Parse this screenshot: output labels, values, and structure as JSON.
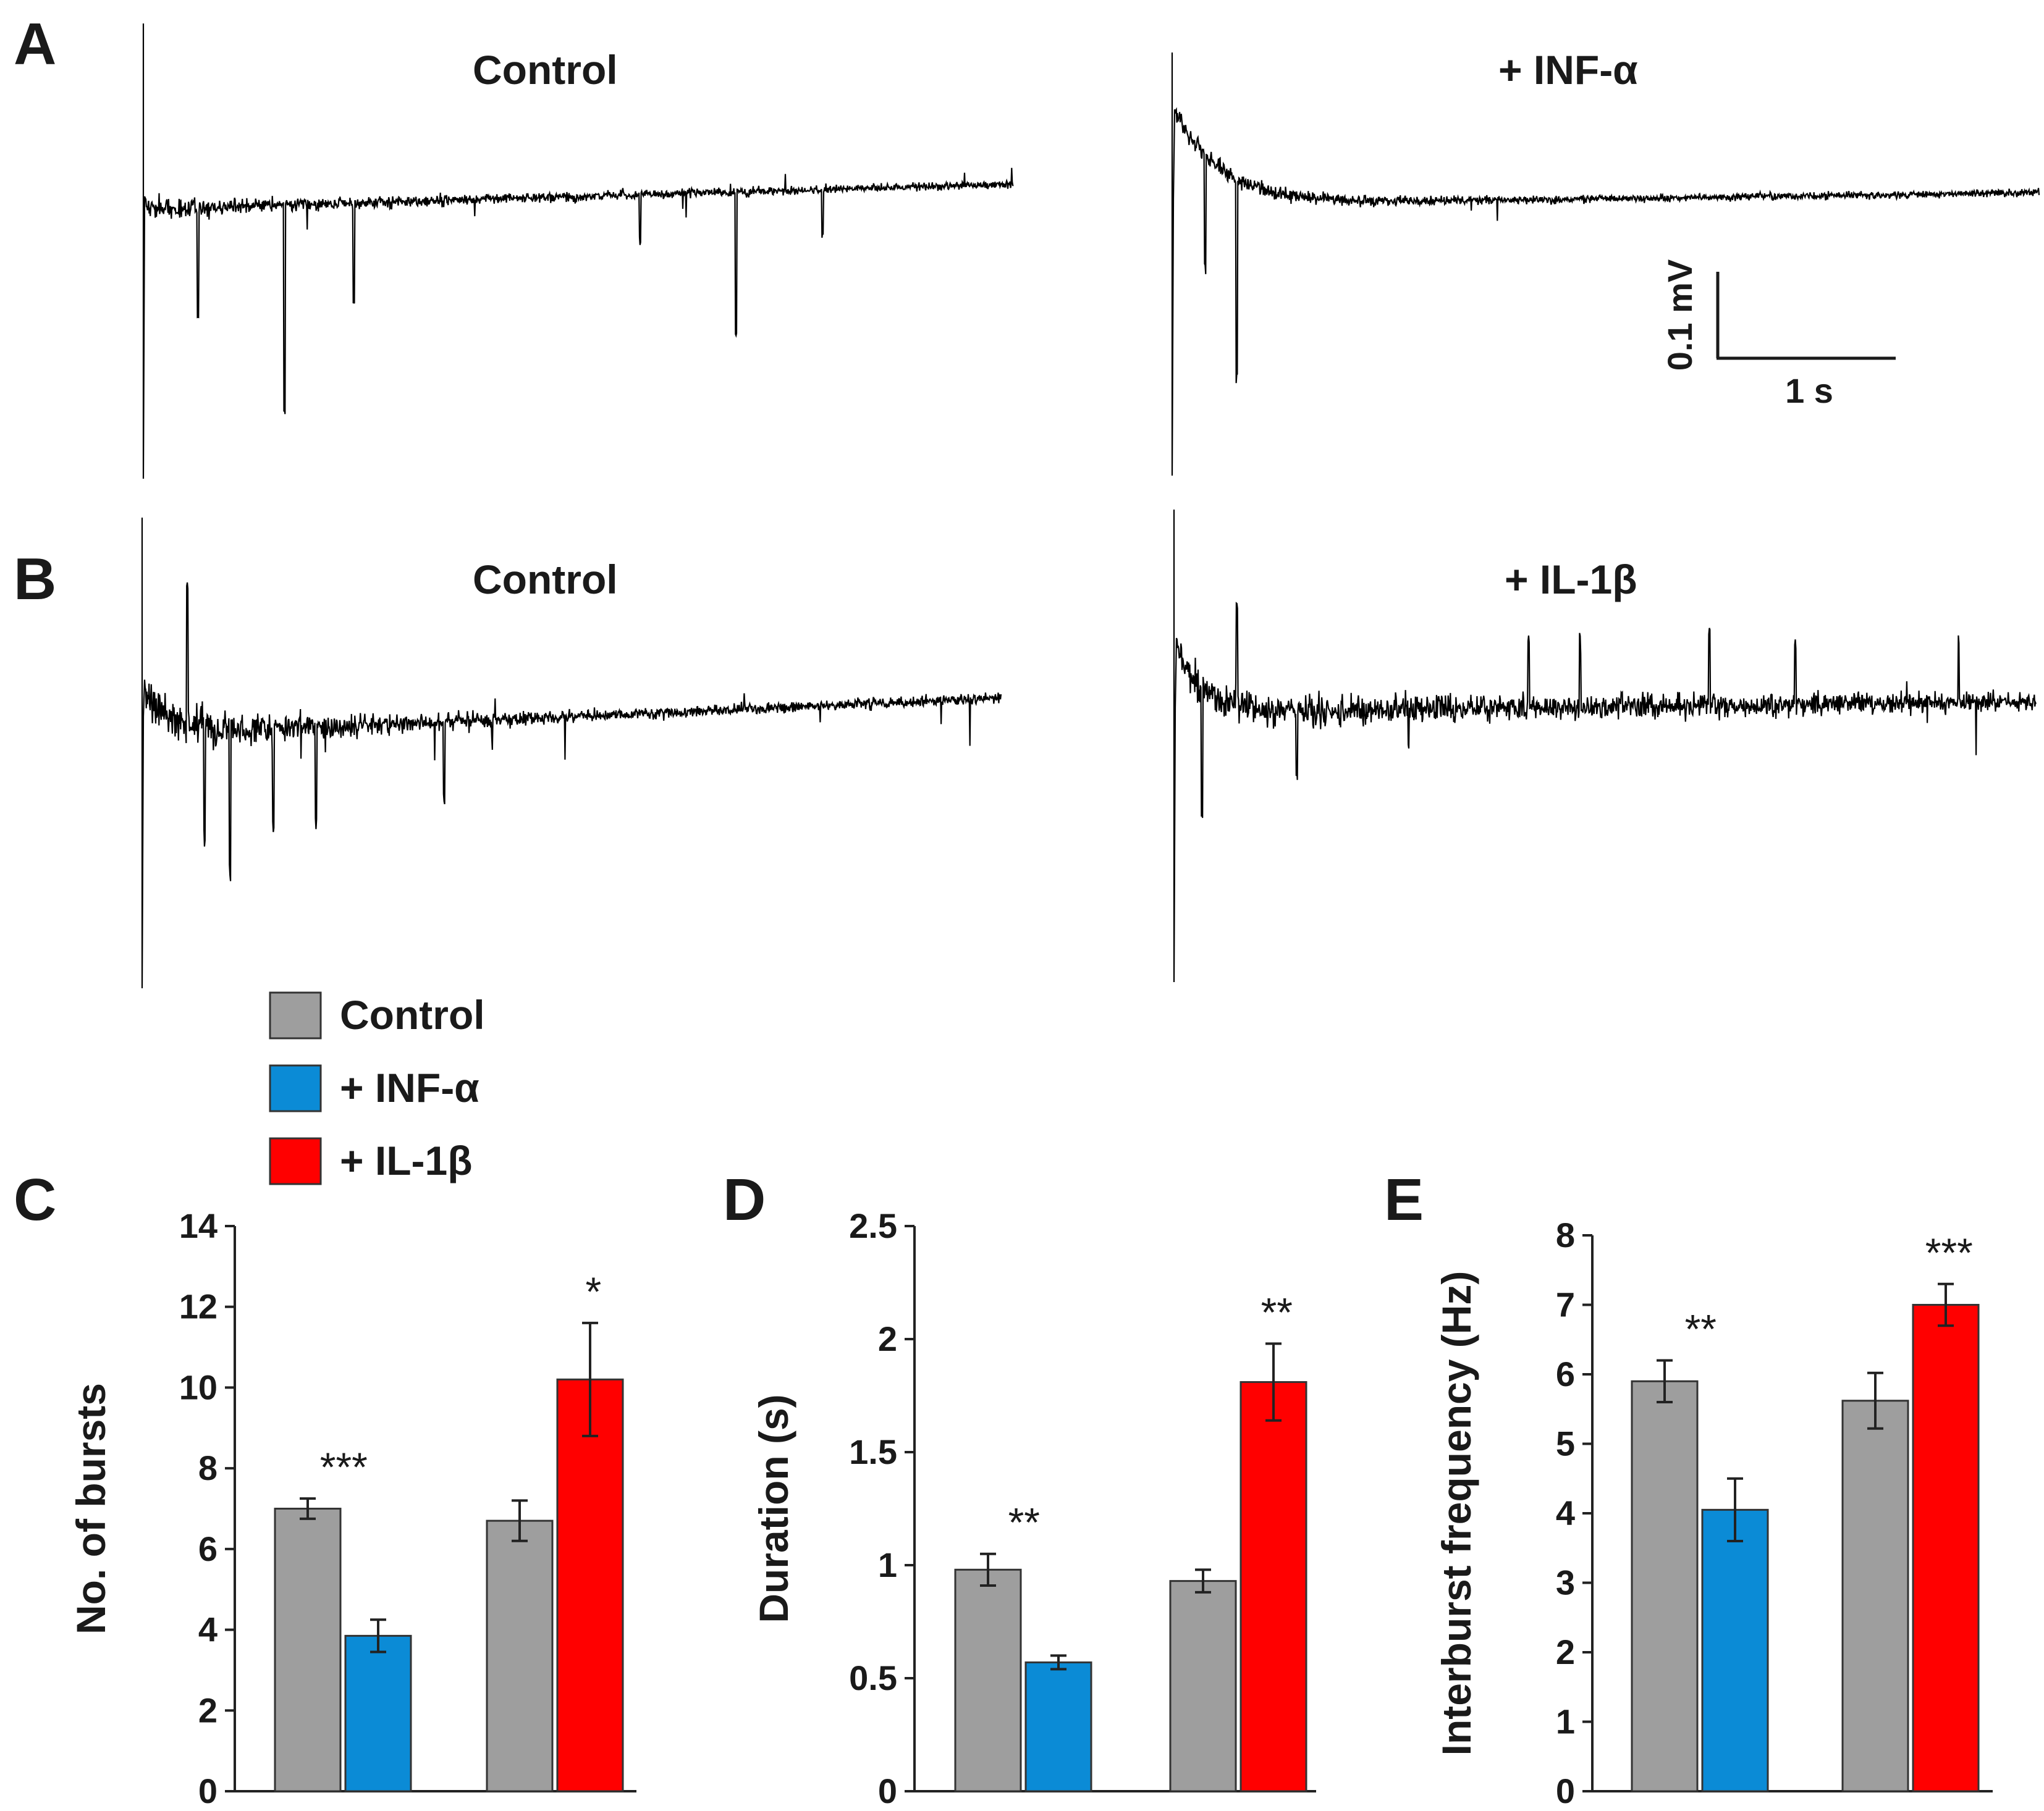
{
  "panels": {
    "A": {
      "letter": "A",
      "left_title": "Control",
      "right_title": "+ INF-α",
      "scale_bar": {
        "vertical_label": "0.1 mV",
        "horizontal_label": "1 s"
      }
    },
    "B": {
      "letter": "B",
      "left_title": "Control",
      "right_title": "+ IL-1β"
    },
    "C": {
      "letter": "C"
    },
    "D": {
      "letter": "D"
    },
    "E": {
      "letter": "E"
    }
  },
  "legend": [
    {
      "label": "Control",
      "color": "#9e9e9e"
    },
    {
      "label": "+ INF-α",
      "color": "#0b8bd6"
    },
    {
      "label": "+ IL-1β",
      "color": "#ff0000"
    }
  ],
  "colors": {
    "control": "#9e9e9e",
    "inf": "#0b8bd6",
    "il": "#ff0000",
    "trace": "#000000"
  },
  "chart_data": [
    {
      "type": "bar",
      "panel": "C",
      "ylabel": "No. of bursts",
      "ylim": [
        0,
        14
      ],
      "yticks": [
        0,
        2,
        4,
        6,
        8,
        10,
        12,
        14
      ],
      "groups": [
        {
          "bars": [
            {
              "series": "Control",
              "value": 7.0,
              "error": 0.25
            },
            {
              "series": "+ INF-α",
              "value": 3.85,
              "error": 0.4
            }
          ],
          "significance": "***"
        },
        {
          "bars": [
            {
              "series": "Control",
              "value": 6.7,
              "error": 0.5
            },
            {
              "series": "+ IL-1β",
              "value": 10.2,
              "error": 1.4
            }
          ],
          "significance": "*"
        }
      ]
    },
    {
      "type": "bar",
      "panel": "D",
      "ylabel": "Duration (s)",
      "ylim": [
        0,
        2.5
      ],
      "yticks": [
        0,
        0.5,
        1,
        1.5,
        2,
        2.5
      ],
      "groups": [
        {
          "bars": [
            {
              "series": "Control",
              "value": 0.98,
              "error": 0.07
            },
            {
              "series": "+ INF-α",
              "value": 0.57,
              "error": 0.03
            }
          ],
          "significance": "**"
        },
        {
          "bars": [
            {
              "series": "Control",
              "value": 0.93,
              "error": 0.05
            },
            {
              "series": "+ IL-1β",
              "value": 1.81,
              "error": 0.17
            }
          ],
          "significance": "**"
        }
      ]
    },
    {
      "type": "bar",
      "panel": "E",
      "ylabel": "Interburst frequency (Hz)",
      "ylim": [
        0,
        8
      ],
      "yticks": [
        0,
        1,
        2,
        3,
        4,
        5,
        6,
        7,
        8
      ],
      "groups": [
        {
          "bars": [
            {
              "series": "Control",
              "value": 5.9,
              "error": 0.3
            },
            {
              "series": "+ INF-α",
              "value": 4.05,
              "error": 0.45
            }
          ],
          "significance": "**"
        },
        {
          "bars": [
            {
              "series": "Control",
              "value": 5.62,
              "error": 0.4
            },
            {
              "series": "+ IL-1β",
              "value": 7.0,
              "error": 0.3
            }
          ],
          "significance": "***"
        }
      ]
    }
  ]
}
